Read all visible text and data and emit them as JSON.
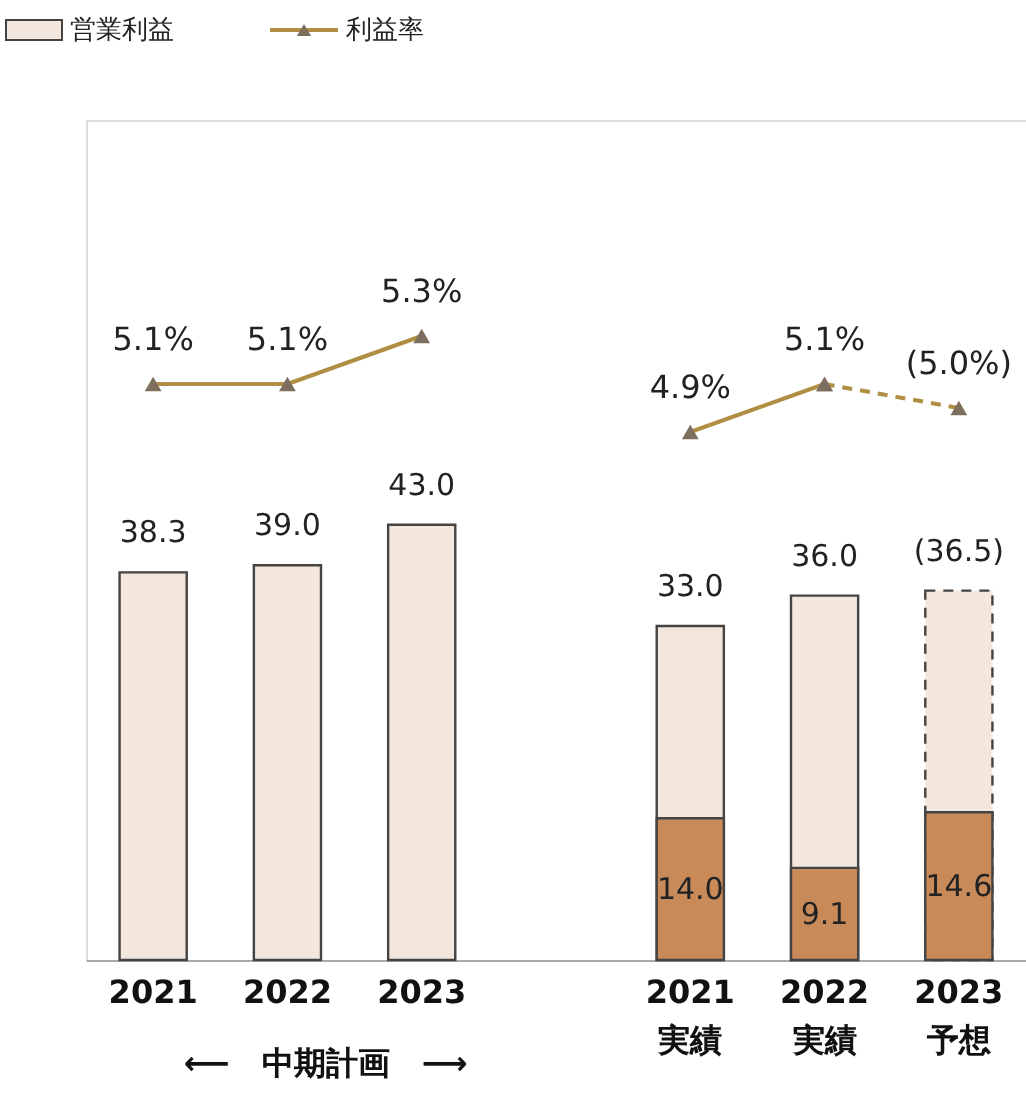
{
  "chart_data": {
    "type": "bar",
    "categories": [
      "2021",
      "2022",
      "2023",
      null,
      "2021\n実績",
      "2022\n実績",
      "2023\n予想"
    ],
    "series": [
      {
        "name": "営業利益",
        "color": "#f3e6dc",
        "values": [
          38.3,
          39.0,
          43.0,
          null,
          33.0,
          36.0,
          null
        ],
        "value_labels": [
          "38.3",
          "39.0",
          "43.0",
          null,
          "33.0",
          "36.0",
          null
        ]
      },
      {
        "color": "#f3e6dc",
        "line_style": "dashed",
        "values": [
          null,
          null,
          null,
          null,
          null,
          null,
          36.5
        ],
        "value_labels": [
          null,
          null,
          null,
          null,
          null,
          null,
          "(36.5)"
        ]
      },
      {
        "color": "#c98a5a",
        "values": [
          null,
          null,
          null,
          null,
          14.0,
          9.1,
          14.6
        ],
        "value_labels": [
          null,
          null,
          null,
          null,
          "14.0",
          "9.1",
          "14.6"
        ]
      },
      {
        "name": "利益率",
        "type": "line",
        "axis": "y2",
        "color": "#b08f45",
        "values": [
          5.1,
          5.1,
          5.3,
          null,
          null,
          null,
          null
        ],
        "value_labels": [
          "5.1%",
          "5.1%",
          "5.3%",
          null,
          null,
          null,
          null
        ]
      },
      {
        "type": "line",
        "axis": "y2",
        "color": "#b08f45",
        "values": [
          null,
          null,
          null,
          null,
          4.9,
          5.1,
          null
        ],
        "value_labels": [
          null,
          null,
          null,
          null,
          "4.9%",
          "5.1%",
          null
        ]
      },
      {
        "type": "line",
        "axis": "y2",
        "color": "#b08f45",
        "line_style": "dashed",
        "values": [
          null,
          null,
          null,
          null,
          null,
          5.1,
          5.0
        ],
        "value_labels": [
          null,
          null,
          null,
          null,
          null,
          null,
          "(5.0%)"
        ]
      }
    ],
    "ylim": [
      0,
      83
    ],
    "y2lim": [
      2.7,
      6.2
    ],
    "tick_labels": "x",
    "marker": "triangle",
    "legend": "top left",
    "grid": false,
    "annotations": [
      "⟵　中期計画　⟶"
    ]
  }
}
